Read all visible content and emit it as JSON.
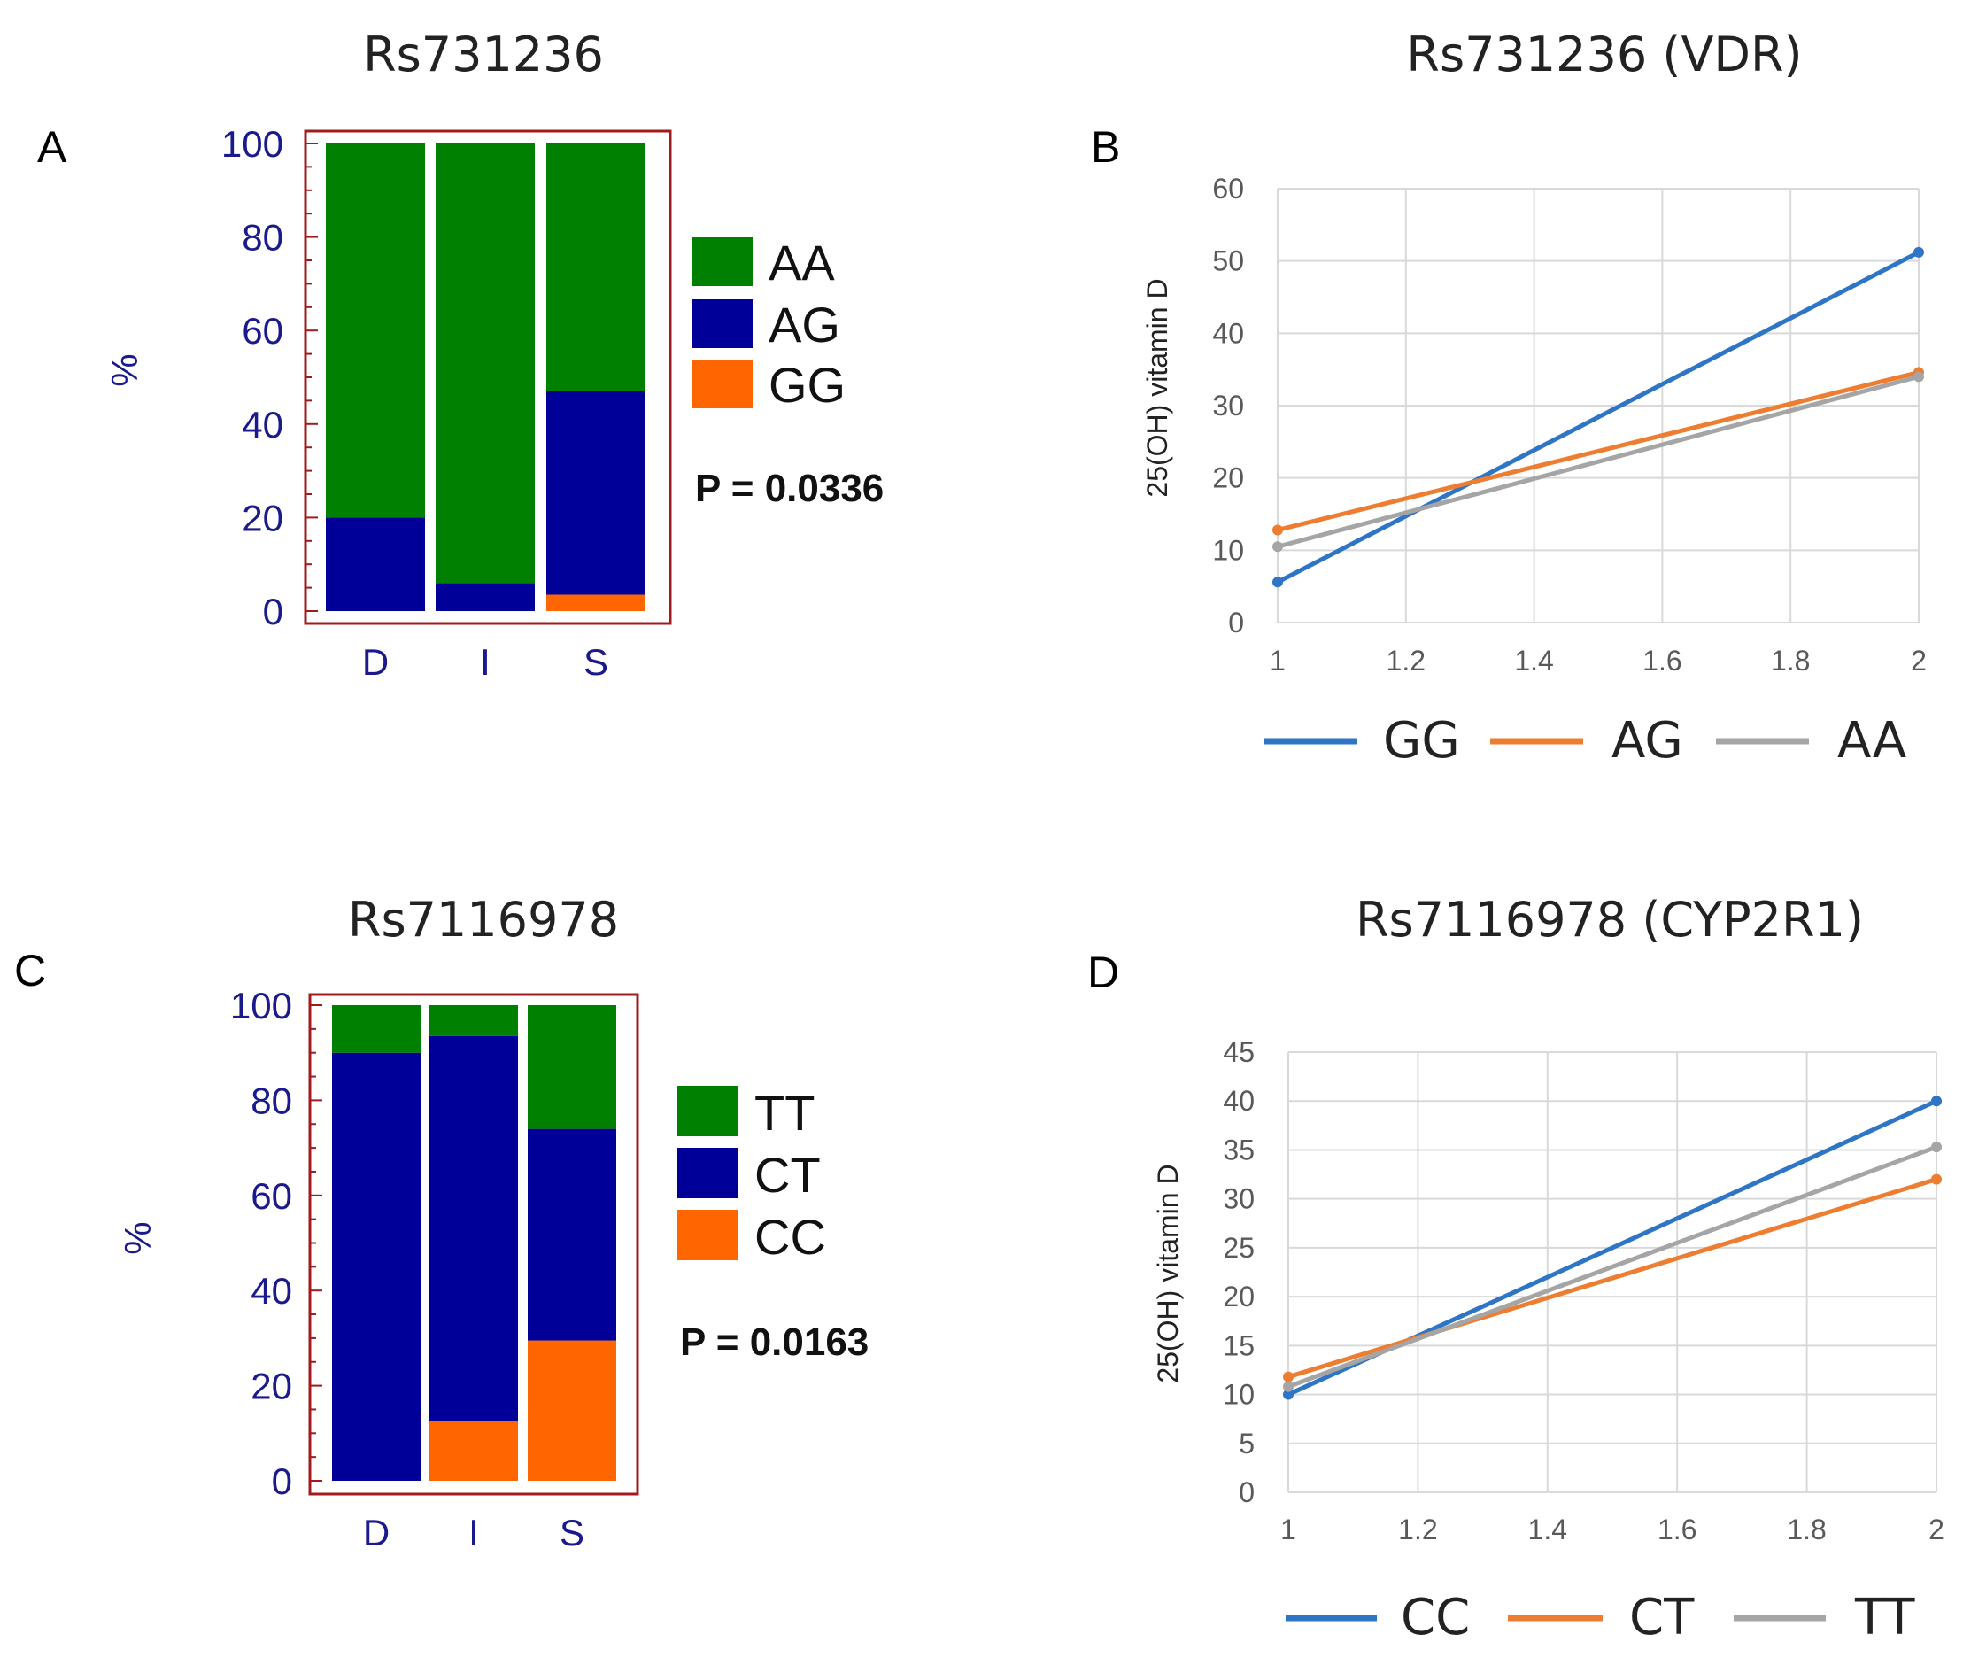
{
  "figure": {
    "panel_letters": [
      "A",
      "B",
      "C",
      "D"
    ],
    "colors": {
      "green": "#008000",
      "navy": "#000099",
      "orange": "#ff6600",
      "frame": "#a01c1c",
      "axis_text": "#1a1a8c",
      "line_blue": "#2e75c6",
      "line_orange": "#ed7d31",
      "line_gray": "#a5a5a5"
    }
  },
  "chart_data": [
    {
      "panel": "A",
      "type": "bar",
      "stacked": true,
      "title": "Rs731236",
      "ylabel": "%",
      "xlabel": "",
      "categories": [
        "D",
        "I",
        "S"
      ],
      "ylim": [
        0,
        100
      ],
      "yticks": [
        "0",
        "20",
        "40",
        "60",
        "80",
        "100"
      ],
      "series": [
        {
          "name": "GG",
          "color": "#ff6600",
          "values": [
            0,
            0,
            3.5
          ]
        },
        {
          "name": "AG",
          "color": "#000099",
          "values": [
            20,
            6,
            43.5
          ]
        },
        {
          "name": "AA",
          "color": "#008000",
          "values": [
            80,
            94,
            53
          ]
        }
      ],
      "legend": [
        "AA",
        "AG",
        "GG"
      ],
      "annotation": "P = 0.0336"
    },
    {
      "panel": "B",
      "type": "line",
      "title": "Rs731236 (VDR)",
      "ylabel": "25(OH) vitamin D",
      "xlabel": "",
      "x": [
        1,
        2
      ],
      "xlim": [
        1,
        2
      ],
      "xticks": [
        "1",
        "1.2",
        "1.4",
        "1.6",
        "1.8",
        "2"
      ],
      "ylim": [
        0,
        60
      ],
      "yticks": [
        "0",
        "10",
        "20",
        "30",
        "40",
        "50",
        "60"
      ],
      "grid": true,
      "series": [
        {
          "name": "GG",
          "color": "#2e75c6",
          "values": [
            5.6,
            51.2
          ]
        },
        {
          "name": "AG",
          "color": "#ed7d31",
          "values": [
            12.8,
            34.6
          ]
        },
        {
          "name": "AA",
          "color": "#a5a5a5",
          "values": [
            10.5,
            34.0
          ]
        }
      ],
      "legend": [
        "GG",
        "AG",
        "AA"
      ]
    },
    {
      "panel": "C",
      "type": "bar",
      "stacked": true,
      "title": "Rs7116978",
      "ylabel": "%",
      "xlabel": "",
      "categories": [
        "D",
        "I",
        "S"
      ],
      "ylim": [
        0,
        100
      ],
      "yticks": [
        "0",
        "20",
        "40",
        "60",
        "80",
        "100"
      ],
      "series": [
        {
          "name": "CC",
          "color": "#ff6600",
          "values": [
            0,
            12.5,
            29.5
          ]
        },
        {
          "name": "CT",
          "color": "#000099",
          "values": [
            90,
            81,
            44.5
          ]
        },
        {
          "name": "TT",
          "color": "#008000",
          "values": [
            10,
            6.5,
            26
          ]
        }
      ],
      "legend": [
        "TT",
        "CT",
        "CC"
      ],
      "annotation": "P = 0.0163"
    },
    {
      "panel": "D",
      "type": "line",
      "title": "Rs7116978 (CYP2R1)",
      "ylabel": "25(OH) vitamin D",
      "xlabel": "",
      "x": [
        1,
        2
      ],
      "xlim": [
        1,
        2
      ],
      "xticks": [
        "1",
        "1.2",
        "1.4",
        "1.6",
        "1.8",
        "2"
      ],
      "ylim": [
        0,
        45
      ],
      "yticks": [
        "0",
        "5",
        "10",
        "15",
        "20",
        "25",
        "30",
        "35",
        "40",
        "45"
      ],
      "grid": true,
      "series": [
        {
          "name": "CC",
          "color": "#2e75c6",
          "values": [
            10.0,
            40.0
          ]
        },
        {
          "name": "CT",
          "color": "#ed7d31",
          "values": [
            11.8,
            32.0
          ]
        },
        {
          "name": "TT",
          "color": "#a5a5a5",
          "values": [
            10.8,
            35.3
          ]
        }
      ],
      "legend": [
        "CC",
        "CT",
        "TT"
      ]
    }
  ]
}
